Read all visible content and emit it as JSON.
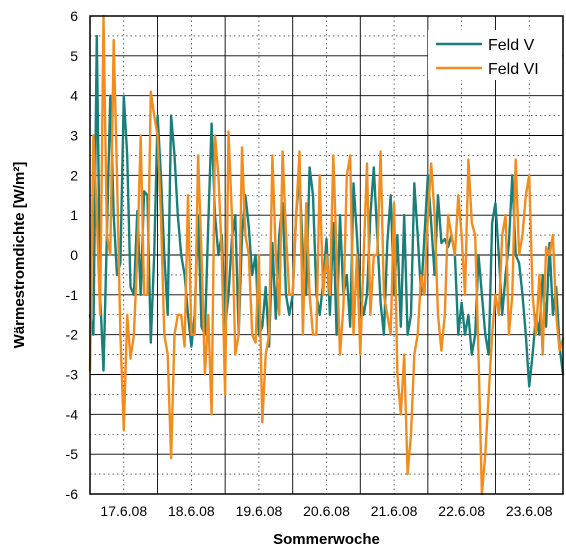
{
  "chart_data": {
    "type": "line",
    "xlabel": "Sommerwoche",
    "ylabel": "Wärmestromdichte [W/m²]",
    "ylim": [
      -6,
      6
    ],
    "yticks": [
      6,
      5,
      4,
      3,
      2,
      1,
      0,
      -1,
      -2,
      -3,
      -4,
      -5,
      -6
    ],
    "xlim": [
      0,
      7
    ],
    "xtick_labels": [
      "17.6.08",
      "18.6.08",
      "19.6.08",
      "20.6.08",
      "21.6.08",
      "22.6.08",
      "23.6.08"
    ],
    "xtick_positions": [
      0.5,
      1.5,
      2.5,
      3.5,
      4.5,
      5.5,
      6.5
    ],
    "grid": true,
    "legend_position": "top-right",
    "series": [
      {
        "name": "Feld V",
        "color": "#1a7f7a",
        "x": [
          0.0,
          0.05,
          0.1,
          0.15,
          0.2,
          0.25,
          0.3,
          0.35,
          0.4,
          0.45,
          0.5,
          0.55,
          0.6,
          0.65,
          0.7,
          0.75,
          0.8,
          0.85,
          0.9,
          0.95,
          1.0,
          1.05,
          1.1,
          1.15,
          1.2,
          1.25,
          1.3,
          1.35,
          1.4,
          1.45,
          1.5,
          1.55,
          1.6,
          1.65,
          1.7,
          1.75,
          1.8,
          1.85,
          1.9,
          1.95,
          2.0,
          2.05,
          2.1,
          2.15,
          2.2,
          2.25,
          2.3,
          2.35,
          2.4,
          2.45,
          2.5,
          2.55,
          2.6,
          2.65,
          2.7,
          2.75,
          2.8,
          2.85,
          2.9,
          2.95,
          3.0,
          3.05,
          3.1,
          3.15,
          3.2,
          3.25,
          3.3,
          3.35,
          3.4,
          3.45,
          3.5,
          3.55,
          3.6,
          3.65,
          3.7,
          3.75,
          3.8,
          3.85,
          3.9,
          3.95,
          4.0,
          4.05,
          4.1,
          4.15,
          4.2,
          4.25,
          4.3,
          4.35,
          4.4,
          4.45,
          4.5,
          4.55,
          4.6,
          4.65,
          4.7,
          4.75,
          4.8,
          4.85,
          4.9,
          4.95,
          5.0,
          5.05,
          5.1,
          5.15,
          5.2,
          5.25,
          5.3,
          5.35,
          5.4,
          5.45,
          5.5,
          5.55,
          5.6,
          5.65,
          5.7,
          5.75,
          5.8,
          5.85,
          5.9,
          5.95,
          6.0,
          6.05,
          6.1,
          6.15,
          6.2,
          6.25,
          6.3,
          6.35,
          6.4,
          6.45,
          6.5,
          6.55,
          6.6,
          6.65,
          6.7,
          6.75,
          6.8,
          6.85,
          6.9,
          6.95,
          7.0
        ],
        "values": [
          -1.5,
          -2.0,
          5.5,
          -1.0,
          -2.9,
          0.5,
          4.0,
          1.0,
          -0.5,
          -0.2,
          4.0,
          2.5,
          -0.8,
          -1.0,
          1.1,
          -1.0,
          1.6,
          1.5,
          -2.2,
          0.0,
          3.5,
          2.0,
          0.0,
          -1.5,
          3.5,
          2.5,
          1.0,
          0.0,
          -0.5,
          -1.5,
          -2.3,
          -1.5,
          1.0,
          -1.8,
          -2.0,
          0.8,
          3.3,
          1.0,
          0.0,
          0.5,
          -1.8,
          -1.0,
          0.4,
          1.0,
          -2.0,
          0.5,
          1.5,
          0.7,
          -0.5,
          0.0,
          -2.0,
          -1.8,
          -0.8,
          -2.3,
          0.3,
          -1.6,
          0.5,
          1.3,
          -1.0,
          -1.5,
          -1.0,
          1.0,
          2.0,
          0.0,
          -1.0,
          2.2,
          1.5,
          -1.0,
          -1.5,
          -0.7,
          0.4,
          -1.5,
          0.8,
          -2.0,
          1.0,
          -1.0,
          -0.5,
          -1.8,
          1.8,
          0.5,
          -1.0,
          -1.5,
          -1.0,
          1.0,
          2.2,
          0.5,
          -1.2,
          -2.0,
          0.3,
          1.5,
          -1.0,
          0.5,
          -1.8,
          1.0,
          -2.0,
          -1.5,
          1.8,
          0.5,
          -1.0,
          0.5,
          2.0,
          0.8,
          -0.5,
          1.5,
          0.3,
          0.4,
          0.2,
          0.5,
          0.0,
          -2.0,
          -1.2,
          -2.0,
          -1.5,
          -2.5,
          -2.0,
          0.0,
          -1.0,
          -2.0,
          -2.5,
          0.8,
          1.3,
          0.0,
          -1.5,
          -0.5,
          0.3,
          2.0,
          0.0,
          -0.2,
          -1.0,
          -2.0,
          -3.3,
          -2.5,
          -1.5,
          -2.0,
          -0.5,
          -1.8,
          0.3,
          -1.5,
          -0.8,
          -2.3,
          -3.0
        ]
      },
      {
        "name": "Feld VI",
        "color": "#f28c1e",
        "x": [
          0.0,
          0.05,
          0.1,
          0.15,
          0.2,
          0.25,
          0.3,
          0.35,
          0.4,
          0.45,
          0.5,
          0.55,
          0.6,
          0.65,
          0.7,
          0.75,
          0.8,
          0.85,
          0.9,
          0.95,
          1.0,
          1.05,
          1.1,
          1.15,
          1.2,
          1.25,
          1.3,
          1.35,
          1.4,
          1.45,
          1.5,
          1.55,
          1.6,
          1.65,
          1.7,
          1.75,
          1.8,
          1.85,
          1.9,
          1.95,
          2.0,
          2.05,
          2.1,
          2.15,
          2.2,
          2.25,
          2.3,
          2.35,
          2.4,
          2.45,
          2.5,
          2.55,
          2.6,
          2.65,
          2.7,
          2.75,
          2.8,
          2.85,
          2.9,
          2.95,
          3.0,
          3.05,
          3.1,
          3.15,
          3.2,
          3.25,
          3.3,
          3.35,
          3.4,
          3.45,
          3.5,
          3.55,
          3.6,
          3.65,
          3.7,
          3.75,
          3.8,
          3.85,
          3.9,
          3.95,
          4.0,
          4.05,
          4.1,
          4.15,
          4.2,
          4.25,
          4.3,
          4.35,
          4.4,
          4.45,
          4.5,
          4.55,
          4.6,
          4.65,
          4.7,
          4.75,
          4.8,
          4.85,
          4.9,
          4.95,
          5.0,
          5.05,
          5.1,
          5.15,
          5.2,
          5.25,
          5.3,
          5.35,
          5.4,
          5.45,
          5.5,
          5.55,
          5.6,
          5.65,
          5.7,
          5.75,
          5.8,
          5.85,
          5.9,
          5.95,
          6.0,
          6.05,
          6.1,
          6.15,
          6.2,
          6.25,
          6.3,
          6.35,
          6.4,
          6.45,
          6.5,
          6.55,
          6.6,
          6.65,
          6.7,
          6.75,
          6.8,
          6.85,
          6.9,
          6.95,
          7.0
        ],
        "values": [
          -2.9,
          3.0,
          1.0,
          -1.5,
          6.0,
          0.5,
          0.0,
          5.4,
          2.0,
          -2.0,
          -4.4,
          -1.5,
          -2.6,
          -2.0,
          0.0,
          3.0,
          -1.0,
          -1.0,
          4.1,
          3.5,
          3.0,
          1.0,
          -2.0,
          -2.5,
          -5.1,
          -2.0,
          -1.5,
          -1.5,
          -2.3,
          1.5,
          -2.0,
          -2.0,
          2.5,
          0.0,
          -3.0,
          -1.5,
          -4.0,
          3.0,
          2.0,
          0.0,
          -3.5,
          3.1,
          1.0,
          -2.5,
          -2.0,
          2.7,
          0.5,
          0.0,
          -2.0,
          -2.2,
          0.0,
          -4.2,
          -2.5,
          -2.0,
          2.5,
          0.0,
          -1.5,
          2.6,
          0.5,
          -1.0,
          -1.0,
          1.0,
          2.6,
          -2.0,
          1.3,
          -1.0,
          -2.0,
          -2.0,
          2.0,
          -1.0,
          0.0,
          -1.0,
          2.5,
          0.0,
          -2.5,
          -1.3,
          2.0,
          2.5,
          -2.0,
          0.0,
          -2.5,
          0.0,
          2.3,
          -1.5,
          0.0,
          0.0,
          2.6,
          -1.0,
          -1.5,
          -2.0,
          1.3,
          -3.0,
          -4.0,
          -2.5,
          -5.5,
          -4.5,
          -2.5,
          -2.0,
          -0.5,
          -1.0,
          1.0,
          2.3,
          1.0,
          -1.5,
          -2.4,
          -1.5,
          1.0,
          0.5,
          0.0,
          1.5,
          0.5,
          -1.0,
          2.4,
          0.8,
          0.5,
          -2.5,
          -6.0,
          -5.0,
          -3.5,
          -2.0,
          -1.0,
          -1.5,
          0.5,
          1.0,
          -2.0,
          -1.0,
          2.4,
          0.0,
          0.5,
          1.5,
          2.0,
          -1.0,
          -2.0,
          -0.5,
          -2.5,
          0.2,
          0.0,
          0.5,
          -1.5,
          -2.4,
          -2.1
        ]
      }
    ]
  }
}
